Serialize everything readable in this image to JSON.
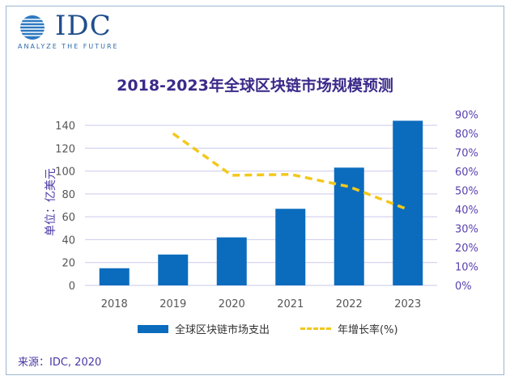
{
  "logo": {
    "name": "IDC",
    "tagline": "ANALYZE THE FUTURE"
  },
  "chart_data": {
    "type": "bar",
    "title": "2018-2023年全球区块链市场规模预测",
    "ylabel": "单位：亿美元",
    "categories": [
      "2018",
      "2019",
      "2020",
      "2021",
      "2022",
      "2023"
    ],
    "ylim": [
      0,
      140
    ],
    "yticks": [
      "0",
      "20",
      "40",
      "60",
      "80",
      "100",
      "120",
      "140"
    ],
    "y2lim": [
      0,
      90
    ],
    "y2ticks": [
      "0%",
      "10%",
      "20%",
      "30%",
      "40%",
      "50%",
      "60%",
      "70%",
      "80%",
      "90%"
    ],
    "grid": true,
    "legend_position": "bottom",
    "series": [
      {
        "name": "全球区块链市场支出",
        "type": "bar",
        "axis": "left",
        "color": "#0b6cbd",
        "values": [
          15,
          27,
          42,
          67,
          103,
          144
        ]
      },
      {
        "name": "年增长率(%)",
        "type": "line",
        "style": "dashed",
        "axis": "right",
        "color": "#f2c81c",
        "values": [
          null,
          80,
          58,
          58.5,
          52,
          40
        ]
      }
    ]
  },
  "source": "来源：IDC, 2020"
}
